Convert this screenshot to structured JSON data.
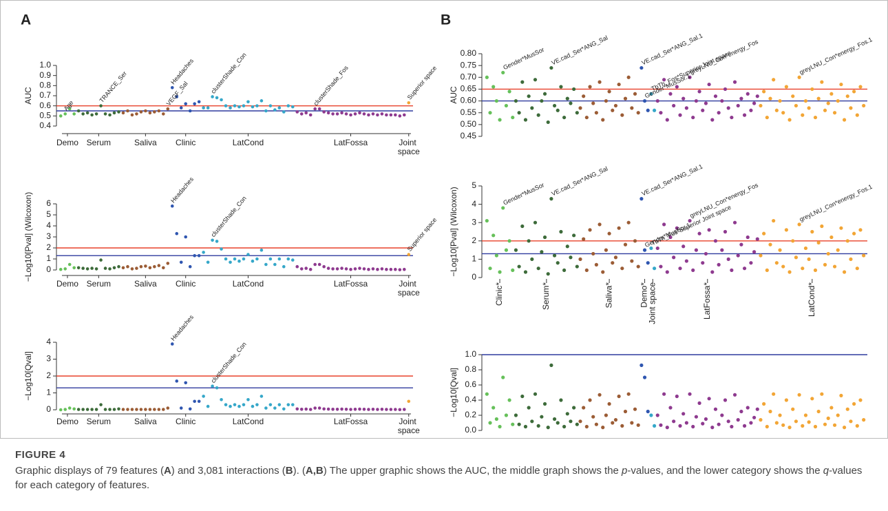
{
  "panels": [
    "A",
    "B"
  ],
  "caption": {
    "label": "FIGURE 4",
    "text": [
      "Graphic displays of 79 features (",
      "A",
      ") and 3,081 interactions (",
      "B",
      "). (",
      "A,B",
      ") The upper graphic shows the AUC, the middle graph shows the ",
      "p",
      "-values, and the lower category shows the ",
      "q",
      "-values for each category of features."
    ]
  },
  "chart_data": [
    {
      "type": "scatter",
      "ylabel": "AUC",
      "ylim": [
        0.4,
        1.0
      ],
      "yticks": [
        0.4,
        0.5,
        0.6,
        0.7,
        0.8,
        0.9,
        {
          "value": 1.0,
          "label": "1.0"
        }
      ],
      "hlines": [
        {
          "value": 0.6,
          "color": "#e8402a"
        },
        {
          "value": 0.55,
          "color": "#2e3a9e"
        }
      ],
      "annotations": [
        "Age",
        "TRANCE_Ser",
        "Headaches",
        "VEGF_Sal",
        "clusterShade_Con",
        "clusterShade_Fos",
        "Superior space"
      ],
      "series": [
        {
          "name": "Demo",
          "color": "#66c05a",
          "values": [
            0.5,
            0.52,
            0.57,
            0.52
          ]
        },
        {
          "name": "Serum",
          "color": "#3d6b3a",
          "values": [
            0.55,
            0.52,
            0.53,
            0.51,
            0.52,
            0.6,
            0.52,
            0.51,
            0.53,
            0.54
          ]
        },
        {
          "name": "Saliva",
          "color": "#9b5c35",
          "values": [
            0.53,
            0.55,
            0.51,
            0.52,
            0.54,
            0.55,
            0.53,
            0.54,
            0.55,
            0.52,
            0.57
          ]
        },
        {
          "name": "Clinic",
          "color": "#2f56b0",
          "values": [
            0.78,
            0.69,
            0.58,
            0.62,
            0.55,
            0.62,
            0.64
          ]
        },
        {
          "name": "LatCond",
          "color": "#35a7c9",
          "values": [
            0.58,
            0.58,
            0.69,
            0.68,
            0.66,
            0.6,
            0.58,
            0.6,
            0.59,
            0.6,
            0.64,
            0.59,
            0.6,
            0.65,
            0.55,
            0.6,
            0.56,
            0.58,
            0.54,
            0.6,
            0.59
          ]
        },
        {
          "name": "LatFossa",
          "color": "#8e3a8f",
          "values": [
            0.54,
            0.52,
            0.53,
            0.51,
            0.57,
            0.57,
            0.54,
            0.53,
            0.52,
            0.52,
            0.53,
            0.52,
            0.51,
            0.52,
            0.53,
            0.52,
            0.51,
            0.52,
            0.51,
            0.52,
            0.51,
            0.51,
            0.51,
            0.5,
            0.51
          ]
        },
        {
          "name": "Joint space",
          "color": "#f2a535",
          "values": [
            0.63
          ]
        }
      ]
    },
    {
      "type": "scatter",
      "ylabel": "−Log10[Pval] (Wilcoxon)",
      "ylim": [
        0,
        6
      ],
      "yticks": [
        0,
        1,
        2,
        3,
        4,
        5,
        6
      ],
      "hlines": [
        {
          "value": 2,
          "color": "#e8402a"
        },
        {
          "value": 1.3,
          "color": "#2e3a9e"
        }
      ],
      "annotations": [
        "Headaches",
        "clusterShade_Con",
        "Superior space"
      ],
      "series": [
        {
          "name": "Demo",
          "color": "#66c05a",
          "values": [
            0.05,
            0.1,
            0.5,
            0.2
          ]
        },
        {
          "name": "Serum",
          "color": "#3d6b3a",
          "values": [
            0.2,
            0.15,
            0.1,
            0.15,
            0.1,
            0.9,
            0.15,
            0.1,
            0.2,
            0.3
          ]
        },
        {
          "name": "Saliva",
          "color": "#9b5c35",
          "values": [
            0.2,
            0.3,
            0.1,
            0.15,
            0.3,
            0.35,
            0.2,
            0.3,
            0.4,
            0.2,
            0.6
          ]
        },
        {
          "name": "Clinic",
          "color": "#2f56b0",
          "values": [
            5.8,
            3.3,
            0.7,
            3.0,
            0.3,
            1.3,
            1.3
          ]
        },
        {
          "name": "LatCond",
          "color": "#35a7c9",
          "values": [
            1.6,
            0.7,
            2.7,
            2.6,
            1.9,
            1.0,
            0.7,
            1.0,
            0.8,
            1.0,
            1.4,
            0.8,
            1.0,
            1.8,
            0.5,
            1.0,
            0.5,
            1.0,
            0.3,
            1.0,
            0.9
          ]
        },
        {
          "name": "LatFossa",
          "color": "#8e3a8f",
          "values": [
            0.3,
            0.1,
            0.15,
            0.05,
            0.5,
            0.5,
            0.3,
            0.15,
            0.1,
            0.1,
            0.15,
            0.1,
            0.05,
            0.1,
            0.15,
            0.1,
            0.05,
            0.1,
            0.05,
            0.1,
            0.05,
            0.05,
            0.05,
            0.02,
            0.05
          ]
        },
        {
          "name": "Joint space",
          "color": "#f2a535",
          "values": [
            1.4
          ]
        }
      ]
    },
    {
      "type": "scatter",
      "ylabel": "−Log10[Qval]",
      "ylim": [
        0,
        4
      ],
      "yticks": [
        0,
        1,
        2,
        3,
        4
      ],
      "hlines": [
        {
          "value": 2,
          "color": "#e8402a"
        },
        {
          "value": 1.3,
          "color": "#2e3a9e"
        }
      ],
      "annotations": [
        "Headaches",
        "clusterShade_Con"
      ],
      "series": [
        {
          "name": "Demo",
          "color": "#66c05a",
          "values": [
            0,
            0.02,
            0.1,
            0.05
          ]
        },
        {
          "name": "Serum",
          "color": "#3d6b3a",
          "values": [
            0.02,
            0.02,
            0.02,
            0.02,
            0.02,
            0.3,
            0.02,
            0.02,
            0.02,
            0.05
          ]
        },
        {
          "name": "Saliva",
          "color": "#9b5c35",
          "values": [
            0.02,
            0.02,
            0.02,
            0.02,
            0.02,
            0.02,
            0.02,
            0.02,
            0.02,
            0.02,
            0.1
          ]
        },
        {
          "name": "Clinic",
          "color": "#2f56b0",
          "values": [
            3.9,
            1.7,
            0.1,
            1.6,
            0.05,
            0.5,
            0.5
          ]
        },
        {
          "name": "LatCond",
          "color": "#35a7c9",
          "values": [
            0.8,
            0.2,
            1.4,
            1.3,
            0.6,
            0.3,
            0.2,
            0.3,
            0.2,
            0.3,
            0.6,
            0.2,
            0.3,
            0.8,
            0.1,
            0.3,
            0.1,
            0.3,
            0.05,
            0.3,
            0.3
          ]
        },
        {
          "name": "LatFossa",
          "color": "#8e3a8f",
          "values": [
            0.05,
            0.03,
            0.04,
            0.02,
            0.1,
            0.1,
            0.05,
            0.04,
            0.03,
            0.03,
            0.04,
            0.03,
            0.02,
            0.03,
            0.04,
            0.03,
            0.02,
            0.03,
            0.02,
            0.03,
            0.02,
            0.02,
            0.02,
            0.01,
            0.02
          ]
        },
        {
          "name": "Joint space",
          "color": "#f2a535",
          "values": [
            0.5
          ]
        }
      ]
    },
    {
      "type": "scatter",
      "ylabel": "AUC",
      "ylim": [
        0.45,
        0.8
      ],
      "yticks": [
        0.45,
        {
          "value": 0.5,
          "label": "0.50"
        },
        0.55,
        {
          "value": 0.6,
          "label": "0.60"
        },
        0.65,
        {
          "value": 0.7,
          "label": "0.70"
        },
        0.75,
        {
          "value": 0.8,
          "label": "0.80"
        }
      ],
      "hlines": [
        {
          "value": 0.65,
          "color": "#e8402a"
        },
        {
          "value": 0.6,
          "color": "#2e3a9e"
        }
      ],
      "annotations": [
        "Gender*MusSor",
        "VE.cad_Ser*ANG_Sal",
        "VE.cad_Ser*ANG_Sal.1",
        "Gender*MusSor.1",
        "TbTh_Fos*Superior Joint space",
        "greyLNU_Con*energy_Fos",
        "greyLNU_Con*energy_Fos.1"
      ],
      "series": [
        {
          "color": "#66c05a",
          "values": [
            0.7,
            0.55,
            0.66,
            0.6,
            0.52,
            0.72,
            0.58,
            0.64,
            0.53
          ]
        },
        {
          "color": "#3d6b3a",
          "values": [
            0.6,
            0.55,
            0.68,
            0.52,
            0.62,
            0.57,
            0.69,
            0.54,
            0.6,
            0.63,
            0.51,
            0.74,
            0.58,
            0.56,
            0.66,
            0.53,
            0.61,
            0.59,
            0.65,
            0.55
          ]
        },
        {
          "color": "#9b5c35",
          "values": [
            0.57,
            0.62,
            0.53,
            0.66,
            0.59,
            0.55,
            0.68,
            0.52,
            0.6,
            0.64,
            0.56,
            0.58,
            0.67,
            0.54,
            0.61,
            0.7,
            0.57,
            0.63,
            0.55
          ]
        },
        {
          "color": "#2f56b0",
          "values": [
            0.74,
            0.6,
            0.56
          ]
        },
        {
          "color": "#35a7c9",
          "values": [
            0.63,
            0.56
          ]
        },
        {
          "color": "#8e3a8f",
          "values": [
            0.6,
            0.55,
            0.69,
            0.52,
            0.63,
            0.58,
            0.66,
            0.54,
            0.61,
            0.57,
            0.7,
            0.53,
            0.6,
            0.64,
            0.56,
            0.59,
            0.67,
            0.52,
            0.62,
            0.55,
            0.6,
            0.65,
            0.57,
            0.53,
            0.68,
            0.58,
            0.61,
            0.54,
            0.63,
            0.56,
            0.59,
            0.62
          ]
        },
        {
          "color": "#f2a535",
          "values": [
            0.58,
            0.64,
            0.53,
            0.61,
            0.69,
            0.56,
            0.6,
            0.55,
            0.66,
            0.52,
            0.62,
            0.58,
            0.7,
            0.54,
            0.6,
            0.57,
            0.65,
            0.53,
            0.61,
            0.68,
            0.56,
            0.59,
            0.63,
            0.55,
            0.6,
            0.67,
            0.52,
            0.62,
            0.57,
            0.64,
            0.54,
            0.66,
            0.58
          ]
        }
      ]
    },
    {
      "type": "scatter",
      "ylabel": "−Log10[Pval] (Wilcoxon)",
      "ylim": [
        0,
        5
      ],
      "yticks": [
        0,
        1,
        2,
        3,
        4,
        5
      ],
      "hlines": [
        {
          "value": 2,
          "color": "#e8402a"
        },
        {
          "value": 1.3,
          "color": "#2e3a9e"
        }
      ],
      "annotations": [
        "Gender*MusSor",
        "VE.cad_Ser*ANG_Sal",
        "VE.cad_Ser*ANG_Sal.1",
        "Gender*MusSor.1",
        "TbTh_Fos*Superior Joint space",
        "greyLNU_Con*energy_Fos",
        "greyLNU_Con*energy_Fos.1"
      ],
      "series": [
        {
          "name": "Clinic*",
          "color": "#66c05a",
          "values": [
            3.1,
            0.5,
            2.3,
            1.2,
            0.3,
            3.8,
            1.5,
            2.0,
            0.4
          ]
        },
        {
          "name": "Serum*",
          "color": "#3d6b3a",
          "values": [
            1.5,
            0.6,
            2.8,
            0.3,
            2.0,
            1.0,
            3.0,
            0.5,
            1.4,
            2.2,
            0.2,
            4.3,
            1.2,
            0.8,
            2.5,
            0.4,
            1.7,
            1.1,
            2.3,
            0.6
          ]
        },
        {
          "name": "Saliva*",
          "color": "#9b5c35",
          "values": [
            1.0,
            2.1,
            0.4,
            2.6,
            1.3,
            0.7,
            2.9,
            0.3,
            1.5,
            2.4,
            0.8,
            1.1,
            2.7,
            0.5,
            1.8,
            3.0,
            0.9,
            2.0,
            0.6
          ]
        },
        {
          "name": "Demo*",
          "color": "#2f56b0",
          "values": [
            4.3,
            1.5,
            0.8
          ]
        },
        {
          "name": "Joint space",
          "color": "#35a7c9",
          "values": [
            1.6,
            0.5
          ]
        },
        {
          "name": "LatFossa*",
          "color": "#8e3a8f",
          "values": [
            1.6,
            0.6,
            2.9,
            0.3,
            2.2,
            1.1,
            2.7,
            0.5,
            1.7,
            0.9,
            3.1,
            0.4,
            1.5,
            2.4,
            0.8,
            1.3,
            2.6,
            0.3,
            2.0,
            0.7,
            1.5,
            2.5,
            1.0,
            0.4,
            3.0,
            1.2,
            1.8,
            0.5,
            2.2,
            0.8,
            1.4,
            2.1
          ]
        },
        {
          "name": "LatCond*",
          "color": "#f2a535",
          "values": [
            1.2,
            2.4,
            0.4,
            1.8,
            3.1,
            0.8,
            1.5,
            0.6,
            2.6,
            0.3,
            2.0,
            1.1,
            2.9,
            0.5,
            1.6,
            1.0,
            2.5,
            0.4,
            1.9,
            2.8,
            0.7,
            1.3,
            2.2,
            0.6,
            1.5,
            2.7,
            0.3,
            2.0,
            1.0,
            2.4,
            0.5,
            2.6,
            1.2
          ]
        }
      ]
    },
    {
      "type": "scatter",
      "ylabel": "−Log10[Qval]",
      "ylim": [
        0,
        1
      ],
      "yticks": [
        {
          "value": 0,
          "label": "0.0"
        },
        0.2,
        0.4,
        0.6,
        0.8,
        {
          "value": 1,
          "label": "1.0"
        }
      ],
      "hlines": [
        {
          "value": 1,
          "color": "#2e3a9e"
        }
      ],
      "series": [
        {
          "color": "#66c05a",
          "values": [
            0.48,
            0.1,
            0.3,
            0.15,
            0.05,
            0.7,
            0.2,
            0.4,
            0.08
          ]
        },
        {
          "color": "#3d6b3a",
          "values": [
            0.2,
            0.08,
            0.45,
            0.05,
            0.3,
            0.12,
            0.48,
            0.06,
            0.18,
            0.35,
            0.04,
            0.86,
            0.15,
            0.1,
            0.4,
            0.05,
            0.22,
            0.12,
            0.3,
            0.08
          ]
        },
        {
          "color": "#9b5c35",
          "values": [
            0.12,
            0.3,
            0.05,
            0.4,
            0.18,
            0.08,
            0.47,
            0.04,
            0.2,
            0.35,
            0.1,
            0.14,
            0.45,
            0.06,
            0.25,
            0.48,
            0.1,
            0.28,
            0.07
          ]
        },
        {
          "color": "#2f56b0",
          "values": [
            0.86,
            0.7,
            0.25
          ]
        },
        {
          "color": "#35a7c9",
          "values": [
            0.2,
            0.06
          ]
        },
        {
          "color": "#8e3a8f",
          "values": [
            0.2,
            0.07,
            0.48,
            0.04,
            0.3,
            0.12,
            0.45,
            0.06,
            0.22,
            0.1,
            0.48,
            0.05,
            0.18,
            0.36,
            0.09,
            0.15,
            0.42,
            0.04,
            0.28,
            0.08,
            0.2,
            0.4,
            0.12,
            0.05,
            0.47,
            0.14,
            0.25,
            0.06,
            0.3,
            0.1,
            0.17,
            0.28
          ]
        },
        {
          "color": "#f2a535",
          "values": [
            0.14,
            0.35,
            0.05,
            0.25,
            0.48,
            0.1,
            0.2,
            0.07,
            0.4,
            0.04,
            0.28,
            0.12,
            0.47,
            0.06,
            0.2,
            0.11,
            0.42,
            0.05,
            0.25,
            0.48,
            0.08,
            0.16,
            0.3,
            0.07,
            0.2,
            0.46,
            0.04,
            0.28,
            0.12,
            0.35,
            0.06,
            0.4,
            0.14
          ]
        }
      ]
    }
  ]
}
